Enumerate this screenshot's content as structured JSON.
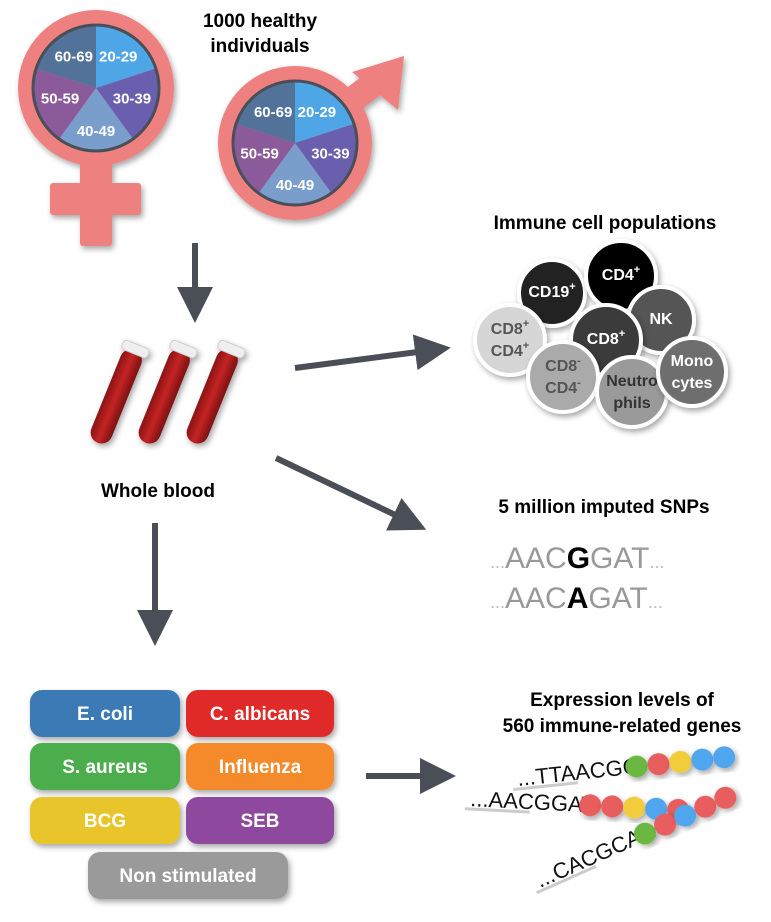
{
  "title": "1000 healthy individuals",
  "title_lines": [
    "1000 healthy",
    "individuals"
  ],
  "age_groups": [
    {
      "label": "20-29",
      "color": "#4FA6E6"
    },
    {
      "label": "30-39",
      "color": "#6A5FAE"
    },
    {
      "label": "40-49",
      "color": "#7A9ECC"
    },
    {
      "label": "50-59",
      "color": "#8A5A9A"
    },
    {
      "label": "60-69",
      "color": "#53729A"
    }
  ],
  "symbol_color": "#EE8080",
  "sample": "Whole blood",
  "immune": {
    "title": "Immune cell populations",
    "cells": [
      {
        "line1": "CD19",
        "sup1": "+",
        "line2": "",
        "sup2": "",
        "color": "#222222",
        "text": "#ffffff"
      },
      {
        "line1": "CD4",
        "sup1": "+",
        "line2": "",
        "sup2": "",
        "color": "#000000",
        "text": "#ffffff"
      },
      {
        "line1": "NK",
        "sup1": "",
        "line2": "",
        "sup2": "",
        "color": "#555555",
        "text": "#ffffff"
      },
      {
        "line1": "CD8",
        "sup1": "+",
        "line2": "CD4",
        "sup2": "+",
        "color": "#D6D6D6",
        "text": "#555555"
      },
      {
        "line1": "CD8",
        "sup1": "+",
        "line2": "",
        "sup2": "",
        "color": "#3A3A3A",
        "text": "#ffffff"
      },
      {
        "line1": "CD8",
        "sup1": "-",
        "line2": "CD4",
        "sup2": "-",
        "color": "#AAAAAA",
        "text": "#555555"
      },
      {
        "line1": "Neutro",
        "sup1": "",
        "line2": "phils",
        "sup2": "",
        "color": "#9A9A9A",
        "text": "#333333"
      },
      {
        "line1": "Mono",
        "sup1": "",
        "line2": "cytes",
        "sup2": "",
        "color": "#6E6E6E",
        "text": "#ffffff"
      }
    ]
  },
  "snps": {
    "title": "5 million imputed SNPs",
    "seq1": {
      "pre": "...",
      "left": "AAC",
      "allele": "G",
      "right": "GAT",
      "post": "..."
    },
    "seq2": {
      "pre": "...",
      "left": "AAC",
      "allele": "A",
      "right": "GAT",
      "post": "..."
    }
  },
  "stimuli": [
    {
      "label": "E. coli",
      "color": "#3B7AB5"
    },
    {
      "label": "C. albicans",
      "color": "#E02A2A"
    },
    {
      "label": "S. aureus",
      "color": "#4CAD4C"
    },
    {
      "label": "Influenza",
      "color": "#F58A2A"
    },
    {
      "label": "BCG",
      "color": "#E8C52A"
    },
    {
      "label": "SEB",
      "color": "#8E4A9E"
    },
    {
      "label": "Non stimulated",
      "color": "#9A9A9A"
    }
  ],
  "expression": {
    "title_lines": [
      "Expression levels of",
      "560 immune-related genes"
    ],
    "sequences": [
      "...TTAACGG",
      "...AACGGAT",
      "...CACGCAA"
    ],
    "bead_colors": {
      "green": "#6BB843",
      "red": "#E85D5D",
      "yellow": "#F2CC3A",
      "blue": "#4FA6EE"
    }
  }
}
